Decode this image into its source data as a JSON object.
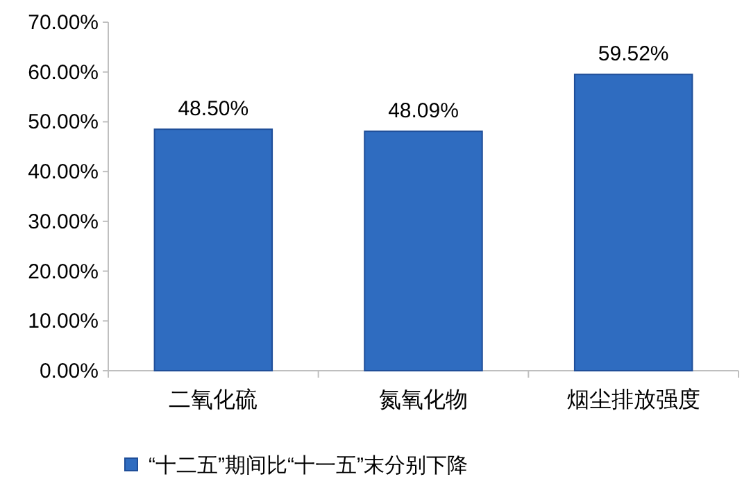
{
  "chart_data": {
    "type": "bar",
    "categories": [
      "二氧化硫",
      "氮氧化物",
      "烟尘排放强度"
    ],
    "series": [
      {
        "name": "“十二五”期间比“十一五”末分别下降",
        "color": "#2f6cc0",
        "values": [
          48.5,
          48.09,
          59.52
        ],
        "value_labels": [
          "48.50%",
          "48.09%",
          "59.52%"
        ]
      }
    ],
    "ylim": [
      0,
      70
    ],
    "yticks": [
      {
        "value": 0,
        "label": "0.00%"
      },
      {
        "value": 10,
        "label": "10.00%"
      },
      {
        "value": 20,
        "label": "20.00%"
      },
      {
        "value": 30,
        "label": "30.00%"
      },
      {
        "value": 40,
        "label": "40.00%"
      },
      {
        "value": 50,
        "label": "50.00%"
      },
      {
        "value": 60,
        "label": "60.00%"
      },
      {
        "value": 70,
        "label": "70.00%"
      }
    ],
    "grid": false,
    "legend": "bottom"
  }
}
